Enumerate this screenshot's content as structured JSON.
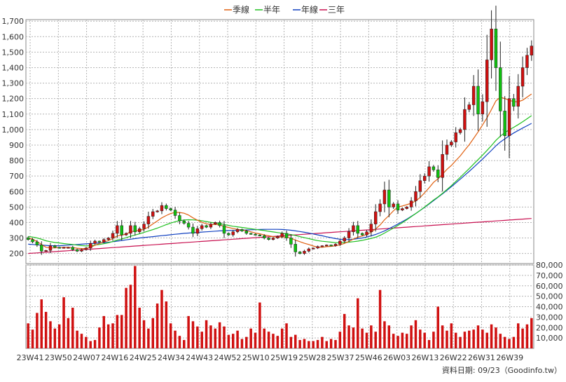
{
  "chart_data": {
    "type": "candlestick_with_volume",
    "legend": [
      {
        "name": "季線",
        "color": "#e06010"
      },
      {
        "name": "半年",
        "color": "#20c020"
      },
      {
        "name": "年線",
        "color": "#1040c0"
      },
      {
        "name": "三年",
        "color": "#c81050"
      }
    ],
    "price_axis": {
      "ticks": [
        "200",
        "300",
        "400",
        "500",
        "600",
        "700",
        "800",
        "900",
        "1,000",
        "1,100",
        "1,200",
        "1,300",
        "1,400",
        "1,500",
        "1,600",
        "1,700"
      ],
      "ylim": [
        200,
        1700
      ]
    },
    "volume_axis": {
      "ticks": [
        "10,000",
        "20,000",
        "30,000",
        "40,000",
        "50,000",
        "60,000",
        "70,000",
        "80,000"
      ],
      "ylim": [
        0,
        80000
      ]
    },
    "x_ticks": [
      "23W41",
      "23W50",
      "24W07",
      "24W16",
      "24W25",
      "24W34",
      "24W43",
      "24W52",
      "25W10",
      "25W19",
      "25W28",
      "25W37",
      "25W46",
      "26W03",
      "26W13",
      "26W22",
      "26W31",
      "26W39"
    ],
    "grid": true,
    "legend_placement": "top-center",
    "footer": "資料日期: 09/23（Goodinfo.tw）",
    "colors": {
      "up": "#d01010",
      "down": "#10c010",
      "grid": "#b4b4b4"
    },
    "series": {
      "close": [
        290,
        275,
        255,
        215,
        220,
        250,
        240,
        235,
        240,
        240,
        225,
        215,
        225,
        235,
        265,
        280,
        275,
        290,
        300,
        330,
        380,
        320,
        330,
        380,
        340,
        360,
        390,
        440,
        470,
        475,
        510,
        490,
        480,
        445,
        410,
        395,
        370,
        330,
        360,
        380,
        370,
        390,
        400,
        380,
        330,
        320,
        340,
        355,
        345,
        330,
        325,
        320,
        315,
        300,
        290,
        300,
        310,
        330,
        300,
        260,
        210,
        200,
        215,
        230,
        235,
        245,
        250,
        255,
        250,
        260,
        280,
        300,
        340,
        380,
        330,
        320,
        340,
        390,
        470,
        520,
        610,
        500,
        520,
        480,
        490,
        500,
        540,
        600,
        670,
        700,
        760,
        740,
        690,
        840,
        900,
        920,
        980,
        1000,
        1130,
        1160,
        1280,
        1100,
        1180,
        1450,
        1650,
        1400,
        1120,
        960,
        1200,
        1150,
        1280,
        1400,
        1480,
        1540
      ],
      "q": [
        300,
        293,
        277,
        258,
        240,
        236,
        236,
        238,
        240,
        240,
        238,
        234,
        232,
        232,
        240,
        253,
        264,
        275,
        283,
        296,
        313,
        318,
        325,
        341,
        345,
        350,
        356,
        371,
        391,
        410,
        430,
        445,
        458,
        465,
        465,
        460,
        448,
        430,
        415,
        401,
        392,
        387,
        388,
        385,
        375,
        368,
        361,
        356,
        352,
        347,
        340,
        333,
        327,
        320,
        314,
        309,
        306,
        307,
        306,
        299,
        286,
        276,
        266,
        258,
        248,
        241,
        240,
        244,
        246,
        250,
        256,
        265,
        278,
        293,
        305,
        313,
        323,
        337,
        358,
        384,
        418,
        445,
        476,
        500,
        507,
        515,
        524,
        539,
        562,
        592,
        624,
        659,
        682,
        712,
        743,
        768,
        800,
        830,
        867,
        902,
        943,
        985,
        1030,
        1076,
        1130,
        1185,
        1210,
        1200,
        1190,
        1180,
        1180,
        1190,
        1210,
        1230
      ],
      "h": [
        310,
        306,
        300,
        292,
        282,
        276,
        271,
        268,
        264,
        261,
        258,
        254,
        251,
        249,
        250,
        254,
        258,
        263,
        269,
        277,
        287,
        294,
        302,
        311,
        319,
        327,
        336,
        345,
        354,
        364,
        375,
        386,
        396,
        405,
        412,
        416,
        418,
        417,
        415,
        411,
        406,
        401,
        397,
        393,
        387,
        381,
        376,
        372,
        368,
        364,
        360,
        356,
        352,
        348,
        343,
        339,
        335,
        331,
        327,
        322,
        316,
        309,
        302,
        296,
        289,
        283,
        279,
        276,
        273,
        270,
        270,
        271,
        273,
        276,
        280,
        285,
        291,
        297,
        305,
        317,
        332,
        348,
        364,
        381,
        399,
        418,
        438,
        458,
        478,
        500,
        522,
        545,
        565,
        588,
        613,
        638,
        665,
        692,
        720,
        748,
        777,
        806,
        835,
        865,
        897,
        930,
        958,
        980,
        999,
        1015,
        1032,
        1050,
        1070,
        1090
      ],
      "y": [
        260,
        258,
        256,
        254,
        252,
        250,
        250,
        250,
        252,
        254,
        256,
        258,
        260,
        262,
        264,
        266,
        268,
        270,
        272,
        276,
        280,
        284,
        288,
        292,
        296,
        300,
        303,
        306,
        309,
        312,
        315,
        318,
        321,
        324,
        327,
        330,
        332,
        334,
        336,
        338,
        340,
        342,
        344,
        346,
        347,
        348,
        349,
        350,
        351,
        352,
        353,
        354,
        355,
        356,
        356,
        356,
        356,
        355,
        353,
        350,
        346,
        342,
        337,
        332,
        326,
        320,
        314,
        308,
        302,
        296,
        292,
        290,
        290,
        292,
        296,
        300,
        306,
        314,
        323,
        334,
        346,
        360,
        375,
        390,
        406,
        422,
        440,
        458,
        478,
        498,
        519,
        541,
        563,
        585,
        608,
        631,
        655,
        680,
        705,
        730,
        756,
        783,
        810,
        838,
        866,
        895,
        920,
        940,
        960,
        978,
        994,
        1010,
        1025,
        1040
      ],
      "y3": [
        200,
        202,
        204,
        206,
        208,
        210,
        212,
        214,
        216,
        218,
        220,
        222,
        224,
        226,
        228,
        230,
        232,
        234,
        236,
        238,
        240,
        242,
        244,
        246,
        248,
        250,
        252,
        254,
        256,
        258,
        260,
        262,
        264,
        266,
        268,
        270,
        272,
        274,
        276,
        278,
        280,
        282,
        284,
        286,
        288,
        290,
        292,
        294,
        296,
        298,
        300,
        302,
        304,
        306,
        308,
        310,
        312,
        314,
        316,
        318,
        320,
        322,
        324,
        326,
        328,
        330,
        332,
        334,
        336,
        338,
        340,
        342,
        344,
        346,
        348,
        350,
        352,
        354,
        356,
        358,
        360,
        362,
        364,
        366,
        368,
        370,
        372,
        374,
        376,
        378,
        380,
        382,
        384,
        386,
        388,
        390,
        392,
        394,
        396,
        398,
        400,
        402,
        404,
        406,
        408,
        410,
        412,
        414,
        416,
        418,
        420,
        422,
        424,
        426
      ],
      "volume": [
        24000,
        18000,
        34000,
        47000,
        35000,
        26000,
        19000,
        23000,
        49000,
        29000,
        39000,
        17000,
        14000,
        11000,
        7000,
        8000,
        20000,
        31000,
        23000,
        24000,
        32000,
        32000,
        58000,
        61000,
        79000,
        39000,
        27000,
        19000,
        29000,
        43000,
        56000,
        45000,
        24000,
        17000,
        12000,
        8000,
        31000,
        26000,
        21000,
        16000,
        27000,
        22000,
        19000,
        25000,
        21000,
        13000,
        14000,
        17000,
        9000,
        11000,
        19000,
        15000,
        44000,
        19000,
        16000,
        14000,
        12000,
        19000,
        24000,
        11000,
        13000,
        8000,
        9000,
        7000,
        7000,
        8000,
        11000,
        7000,
        9000,
        8000,
        16000,
        33000,
        22000,
        20000,
        48000,
        19000,
        15000,
        22000,
        16000,
        56000,
        26000,
        22000,
        14000,
        12000,
        15000,
        14000,
        22000,
        27000,
        18000,
        15000,
        8000,
        16000,
        40000,
        22000,
        17000,
        24000,
        15000,
        11000,
        16000,
        17000,
        18000,
        22000,
        18000,
        15000,
        23000,
        20000,
        14000,
        11000,
        9000,
        11000,
        24000,
        19000,
        23000,
        29000
      ]
    }
  }
}
